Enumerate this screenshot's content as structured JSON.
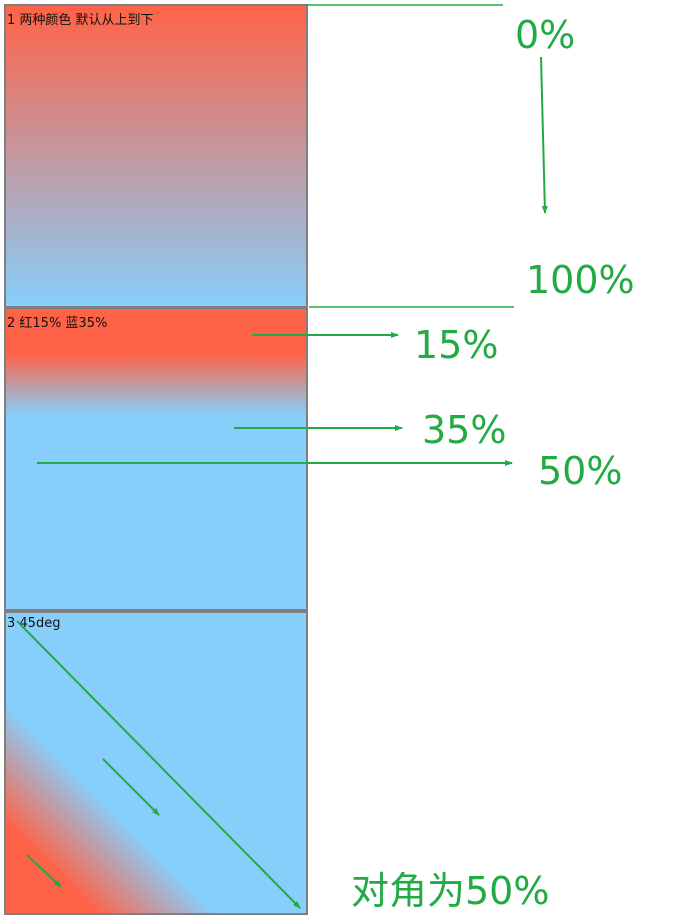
{
  "boxes": [
    {
      "label": "1 两种颜色 默认从上到下"
    },
    {
      "label": "2 红15% 蓝35%"
    },
    {
      "label": "3 45deg"
    }
  ],
  "annotations": {
    "start": "0%",
    "end": "100%",
    "red_stop": "15%",
    "blue_stop": "35%",
    "middle": "50%",
    "diagonal": "对角为50%"
  },
  "colors": {
    "red": "#ff6347",
    "blue": "#87cefa",
    "annotation_green": "#22aa44",
    "border": "#7f7f7f"
  }
}
